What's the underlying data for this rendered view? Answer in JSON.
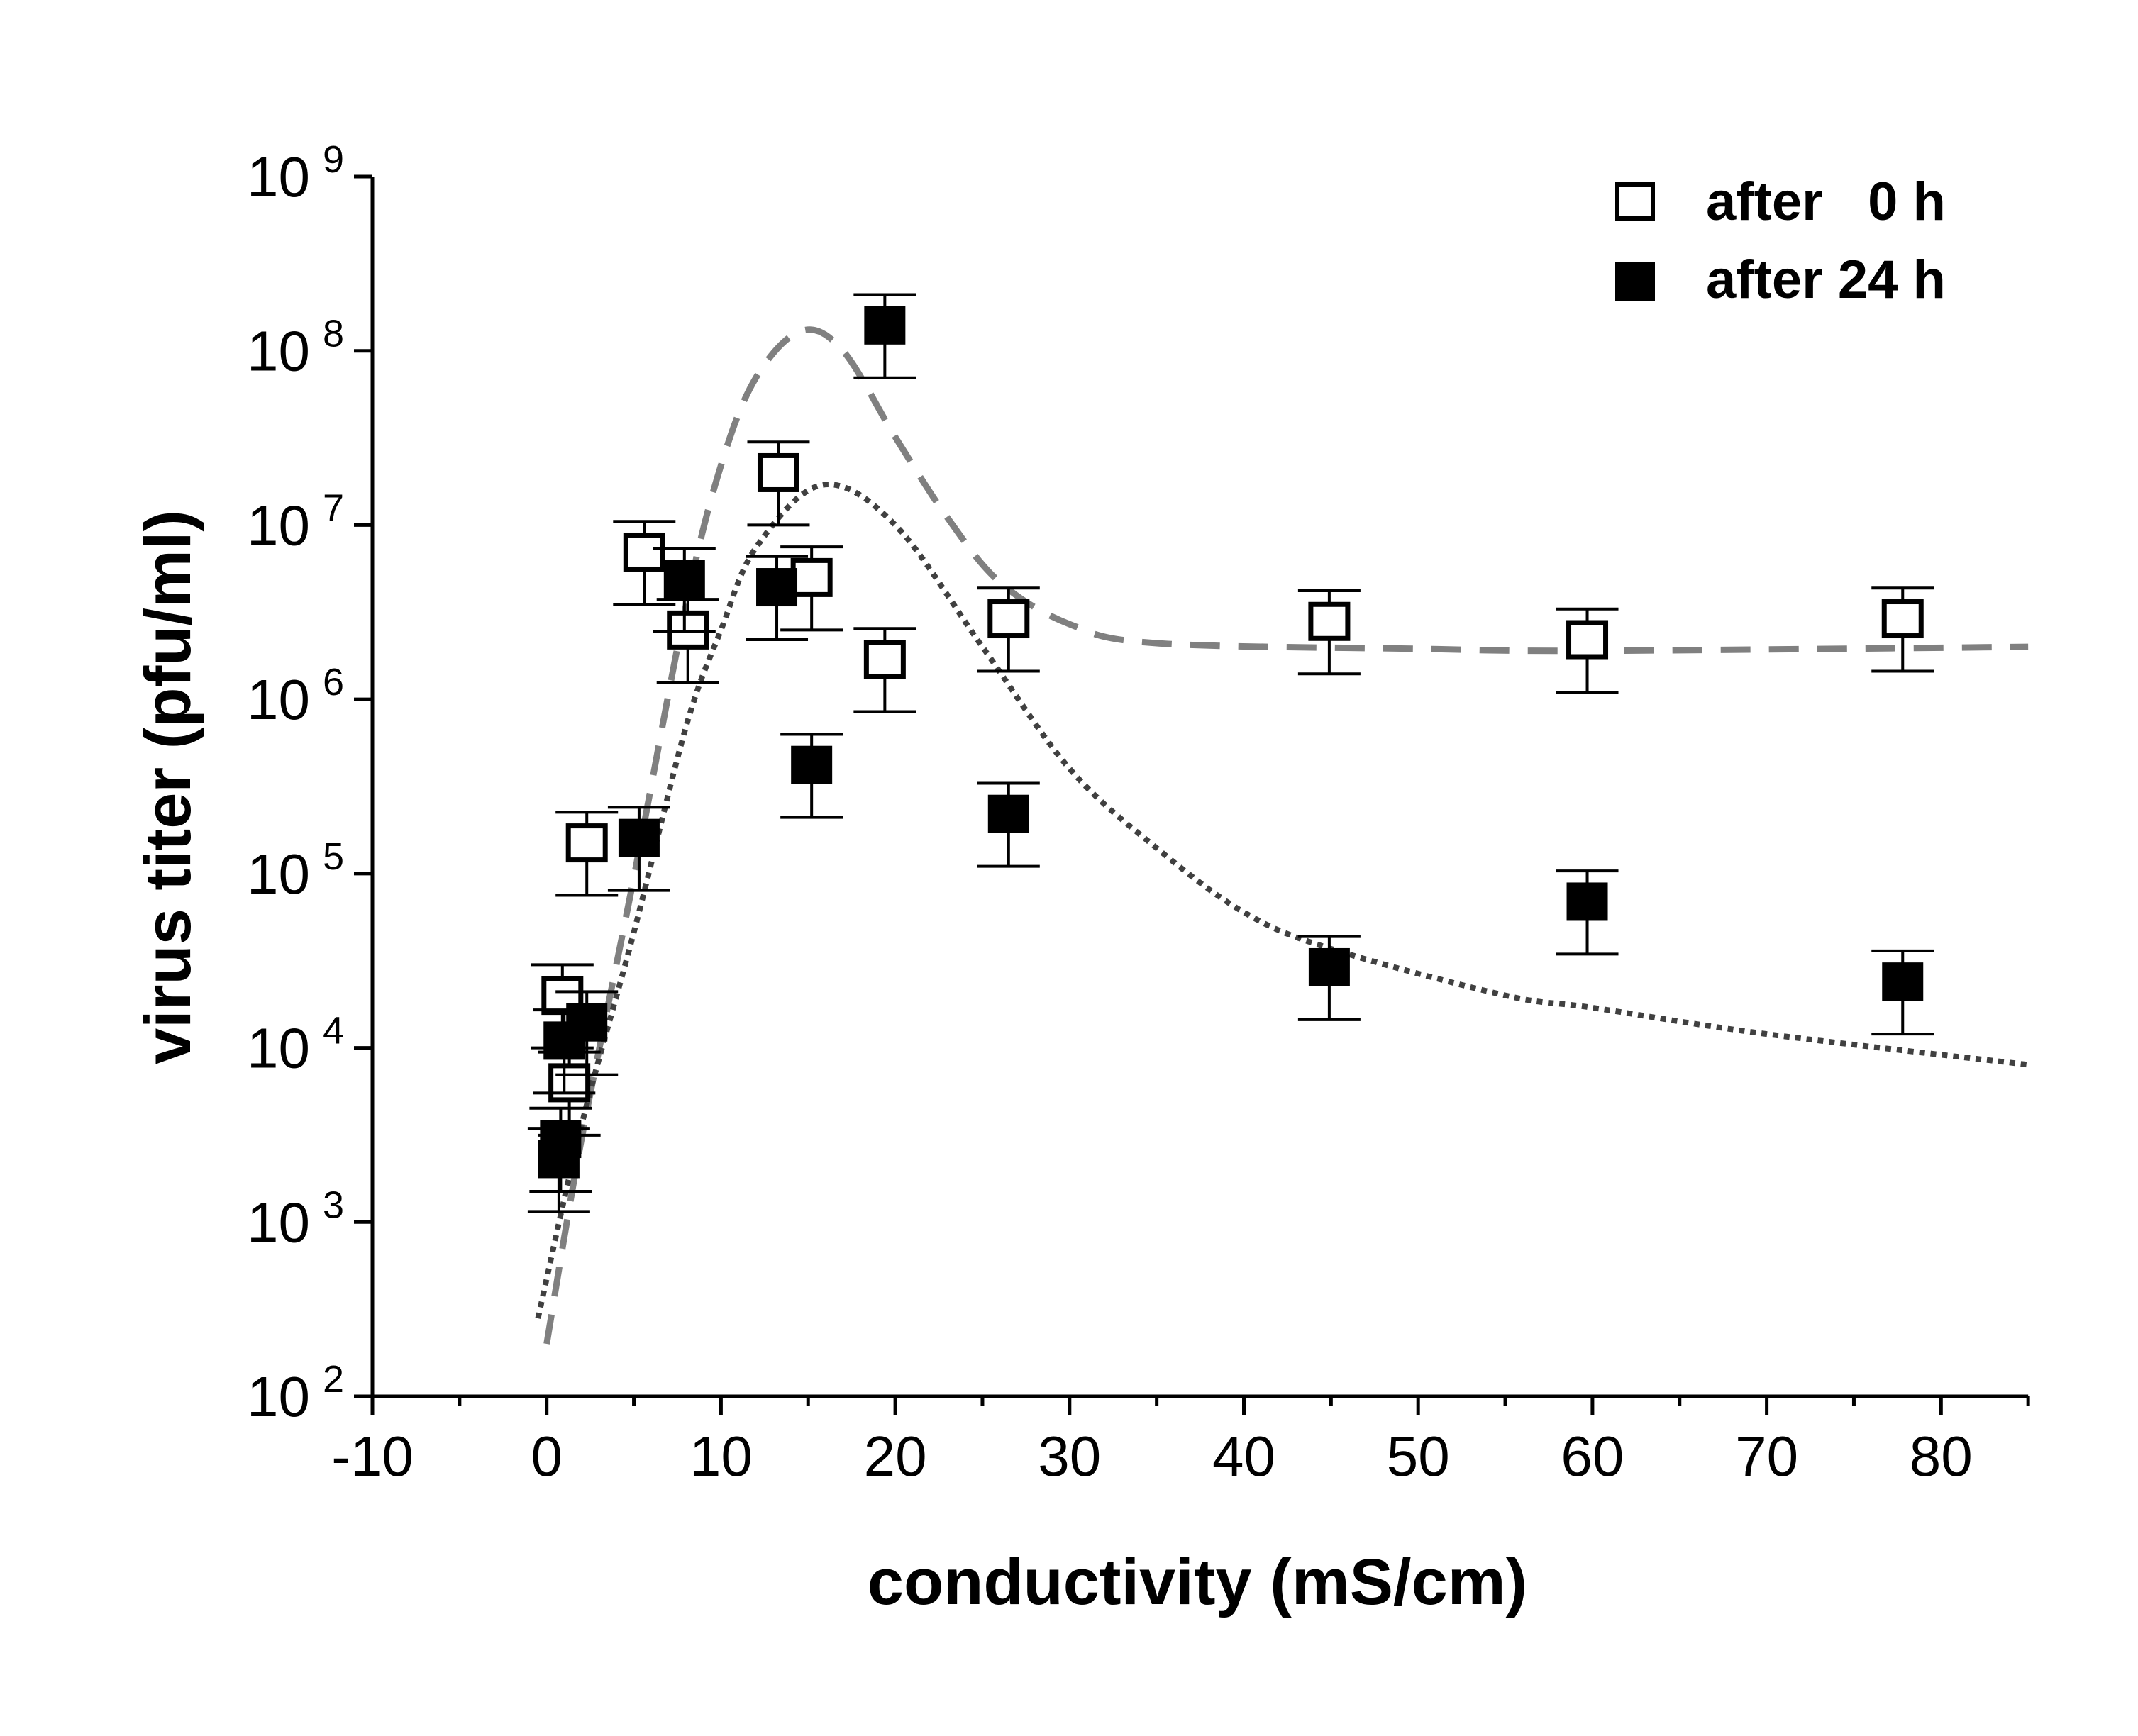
{
  "chart_data": {
    "type": "scatter",
    "title": "",
    "xlabel": "conductivity (mS/cm)",
    "ylabel": "virus titer (pfu/ml)",
    "xlim": [
      -10,
      85
    ],
    "ylim": [
      100,
      1000000000
    ],
    "yscale": "log",
    "x_ticks": [
      -10,
      0,
      10,
      20,
      30,
      40,
      50,
      60,
      70,
      80
    ],
    "x_tick_labels": [
      "-10",
      "0",
      "10",
      "20",
      "30",
      "40",
      "50",
      "60",
      "70",
      "80"
    ],
    "y_ticks": [
      2,
      3,
      4,
      5,
      6,
      7,
      8,
      9
    ],
    "y_tick_base": "10",
    "grid": false,
    "legend_placement": "top-right",
    "relative_error": 0.5,
    "series": [
      {
        "name": "after   0 h",
        "marker": "open-square",
        "color": "#000000",
        "x": [
          0.9,
          1.3,
          2.3,
          5.6,
          8.1,
          13.3,
          15.2,
          19.4,
          26.5,
          44.9,
          59.7,
          77.8
        ],
        "y": [
          20000,
          6300,
          150000,
          7000000,
          2500000,
          20000000,
          5000000,
          1700000,
          2900000,
          2800000,
          2200000,
          2900000
        ]
      },
      {
        "name": "after 24 h",
        "marker": "filled-square",
        "color": "#000000",
        "x": [
          0.7,
          0.8,
          1.0,
          2.3,
          5.3,
          7.9,
          13.2,
          15.2,
          19.4,
          26.5,
          44.9,
          59.7,
          77.8
        ],
        "y": [
          2300,
          3000,
          11000,
          14000,
          160000,
          4900000,
          4400000,
          420000,
          140000000,
          220000,
          29000,
          69000,
          24000
        ]
      }
    ],
    "fit_curves": [
      {
        "style": "dashed",
        "color": "#808080",
        "x": [
          0,
          2,
          5,
          8,
          10,
          12,
          14.6,
          17,
          20,
          23,
          26,
          30,
          35,
          50,
          60,
          85
        ],
        "y": [
          200,
          3000,
          95000,
          3500000,
          22000000,
          70000000,
          130000000,
          100000000,
          32000000,
          11000000,
          4700000,
          2700000,
          2100000,
          1950000,
          1900000,
          2000000
        ]
      },
      {
        "style": "dotted",
        "color": "#404040",
        "x": [
          -0.5,
          2,
          5,
          8,
          10,
          12,
          15.8,
          20,
          25,
          30,
          35,
          40,
          45,
          55,
          60,
          70,
          85
        ],
        "y": [
          280,
          3600,
          46000,
          700000,
          2500000,
          7400000,
          17000000,
          10000000,
          2000000,
          400000,
          140000,
          60000,
          37000,
          20000,
          17000,
          12000,
          8000
        ]
      }
    ]
  }
}
